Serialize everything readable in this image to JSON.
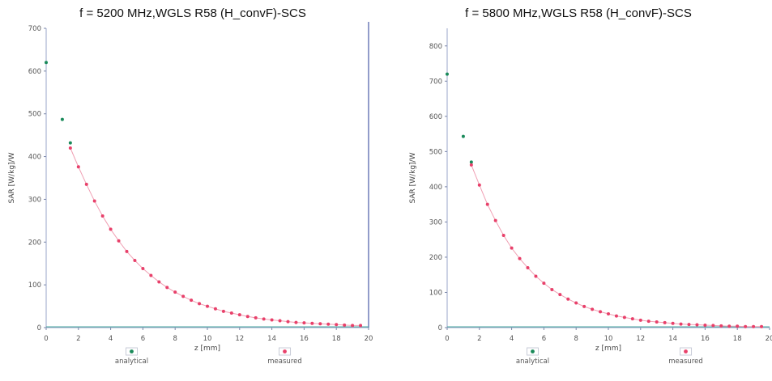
{
  "chart_data": [
    {
      "type": "scatter",
      "title": "f = 5200 MHz,WGLS R58 (H_convF)-SCS",
      "xlabel": "z [mm]",
      "ylabel": "SAR [W/kg]/W",
      "xlim": [
        0,
        20
      ],
      "ylim": [
        0,
        700
      ],
      "xticks": [
        0,
        2,
        4,
        6,
        8,
        10,
        12,
        14,
        16,
        18,
        20
      ],
      "yticks": [
        0,
        100,
        200,
        300,
        400,
        500,
        600,
        700
      ],
      "legend": [
        "analytical",
        "measured"
      ],
      "series": [
        {
          "name": "analytical",
          "color": "#1a8a5a",
          "x": [
            0,
            1.0,
            1.5
          ],
          "y": [
            620,
            487,
            432
          ]
        },
        {
          "name": "measured",
          "color": "#e8406a",
          "x": [
            1.5,
            2.0,
            2.5,
            3.0,
            3.5,
            4.0,
            4.5,
            5.0,
            5.5,
            6.0,
            6.5,
            7.0,
            7.5,
            8.0,
            8.5,
            9.0,
            9.5,
            10.0,
            10.5,
            11.0,
            11.5,
            12.0,
            12.5,
            13.0,
            13.5,
            14.0,
            14.5,
            15.0,
            15.5,
            16.0,
            16.5,
            17.0,
            17.5,
            18.0,
            18.5,
            19.0,
            19.5
          ],
          "y": [
            420,
            376,
            335,
            296,
            261,
            230,
            203,
            178,
            157,
            138,
            122,
            107,
            94,
            83,
            73,
            64,
            56,
            50,
            44,
            38,
            34,
            30,
            26,
            23,
            20,
            18,
            16,
            14,
            12,
            11,
            10,
            9,
            8,
            7,
            6,
            5,
            5
          ]
        }
      ]
    },
    {
      "type": "scatter",
      "title": "f = 5800 MHz,WGLS R58 (H_convF)-SCS",
      "xlabel": "z [mm]",
      "ylabel": "SAR [W/kg]/W",
      "xlim": [
        0,
        20
      ],
      "ylim": [
        0,
        850
      ],
      "xticks": [
        0,
        2,
        4,
        6,
        8,
        10,
        12,
        14,
        16,
        18,
        20
      ],
      "yticks": [
        0,
        100,
        200,
        300,
        400,
        500,
        600,
        700,
        800
      ],
      "legend": [
        "analytical",
        "measured"
      ],
      "series": [
        {
          "name": "analytical",
          "color": "#1a8a5a",
          "x": [
            0,
            1.0,
            1.5
          ],
          "y": [
            720,
            543,
            470
          ]
        },
        {
          "name": "measured",
          "color": "#e8406a",
          "x": [
            1.5,
            2.0,
            2.5,
            3.0,
            3.5,
            4.0,
            4.5,
            5.0,
            5.5,
            6.0,
            6.5,
            7.0,
            7.5,
            8.0,
            8.5,
            9.0,
            9.5,
            10.0,
            10.5,
            11.0,
            11.5,
            12.0,
            12.5,
            13.0,
            13.5,
            14.0,
            14.5,
            15.0,
            15.5,
            16.0,
            16.5,
            17.0,
            17.5,
            18.0,
            18.5,
            19.0,
            19.5
          ],
          "y": [
            462,
            405,
            350,
            304,
            262,
            226,
            196,
            170,
            146,
            126,
            108,
            94,
            81,
            70,
            60,
            52,
            45,
            39,
            33,
            29,
            25,
            21,
            18,
            16,
            14,
            12,
            10,
            9,
            8,
            7,
            6,
            5,
            4,
            4,
            3,
            3,
            3
          ]
        }
      ]
    }
  ]
}
